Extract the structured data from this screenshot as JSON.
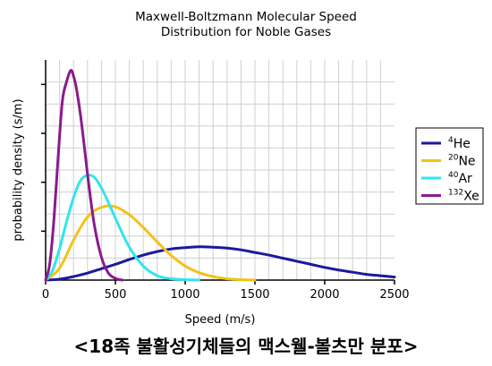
{
  "caption": "<18족 불활성기체들의 맥스웰-볼츠만 분포>",
  "chart_data": {
    "type": "line",
    "title_lines": [
      "Maxwell-Boltzmann Molecular Speed",
      "Distribution for Noble Gases"
    ],
    "xlabel": "Speed (m/s)",
    "ylabel": "probability density (s/m)",
    "xlim": [
      0,
      2500
    ],
    "xticks": [
      0,
      500,
      1000,
      1500,
      2000,
      2500
    ],
    "y_tick_count": 4,
    "grid": true,
    "legend_placement": "right",
    "series": [
      {
        "name_sup": "4",
        "name_base": "He",
        "color": "#1a1a9c",
        "x": [
          0,
          100,
          200,
          300,
          400,
          500,
          600,
          700,
          800,
          900,
          1000,
          1100,
          1200,
          1300,
          1400,
          1500,
          1600,
          1700,
          1800,
          1900,
          2000,
          2100,
          2200,
          2300,
          2400,
          2500
        ],
        "y": [
          0,
          2e-05,
          8e-05,
          0.00016,
          0.00026,
          0.00036,
          0.00047,
          0.00057,
          0.00065,
          0.00071,
          0.00074,
          0.00076,
          0.00075,
          0.00073,
          0.00069,
          0.00063,
          0.00057,
          0.0005,
          0.00043,
          0.00036,
          0.00029,
          0.00023,
          0.00018,
          0.00013,
          0.0001,
          7e-05
        ]
      },
      {
        "name_sup": "20",
        "name_base": "Ne",
        "color": "#f2c21a",
        "x": [
          0,
          100,
          200,
          300,
          400,
          500,
          600,
          700,
          800,
          900,
          1000,
          1100,
          1200,
          1300,
          1400,
          1500
        ],
        "y": [
          0,
          0.00027,
          0.00091,
          0.00144,
          0.00166,
          0.00167,
          0.00149,
          0.0012,
          0.00087,
          0.00056,
          0.00032,
          0.00017,
          8e-05,
          3e-05,
          1e-05,
          0
        ]
      },
      {
        "name_sup": "40",
        "name_base": "Ar",
        "color": "#33e3f0",
        "x": [
          0,
          50,
          100,
          150,
          200,
          250,
          300,
          350,
          400,
          450,
          500,
          600,
          700,
          800,
          900,
          1000,
          1100
        ],
        "y": [
          0,
          0.00022,
          0.00072,
          0.00133,
          0.00188,
          0.00227,
          0.00239,
          0.00234,
          0.0021,
          0.00177,
          0.00141,
          0.00075,
          0.00032,
          0.0001,
          3e-05,
          1e-05,
          0
        ]
      },
      {
        "name_sup": "132",
        "name_base": "Xe",
        "color": "#8a1a8c",
        "x": [
          0,
          30,
          60,
          90,
          120,
          150,
          180,
          200,
          220,
          250,
          280,
          310,
          350,
          400,
          450,
          500,
          550
        ],
        "y": [
          0,
          0.00038,
          0.0014,
          0.00282,
          0.00408,
          0.00452,
          0.00478,
          0.00465,
          0.00438,
          0.00376,
          0.00297,
          0.00216,
          0.00124,
          0.00052,
          0.00016,
          4e-05,
          0
        ]
      }
    ]
  }
}
